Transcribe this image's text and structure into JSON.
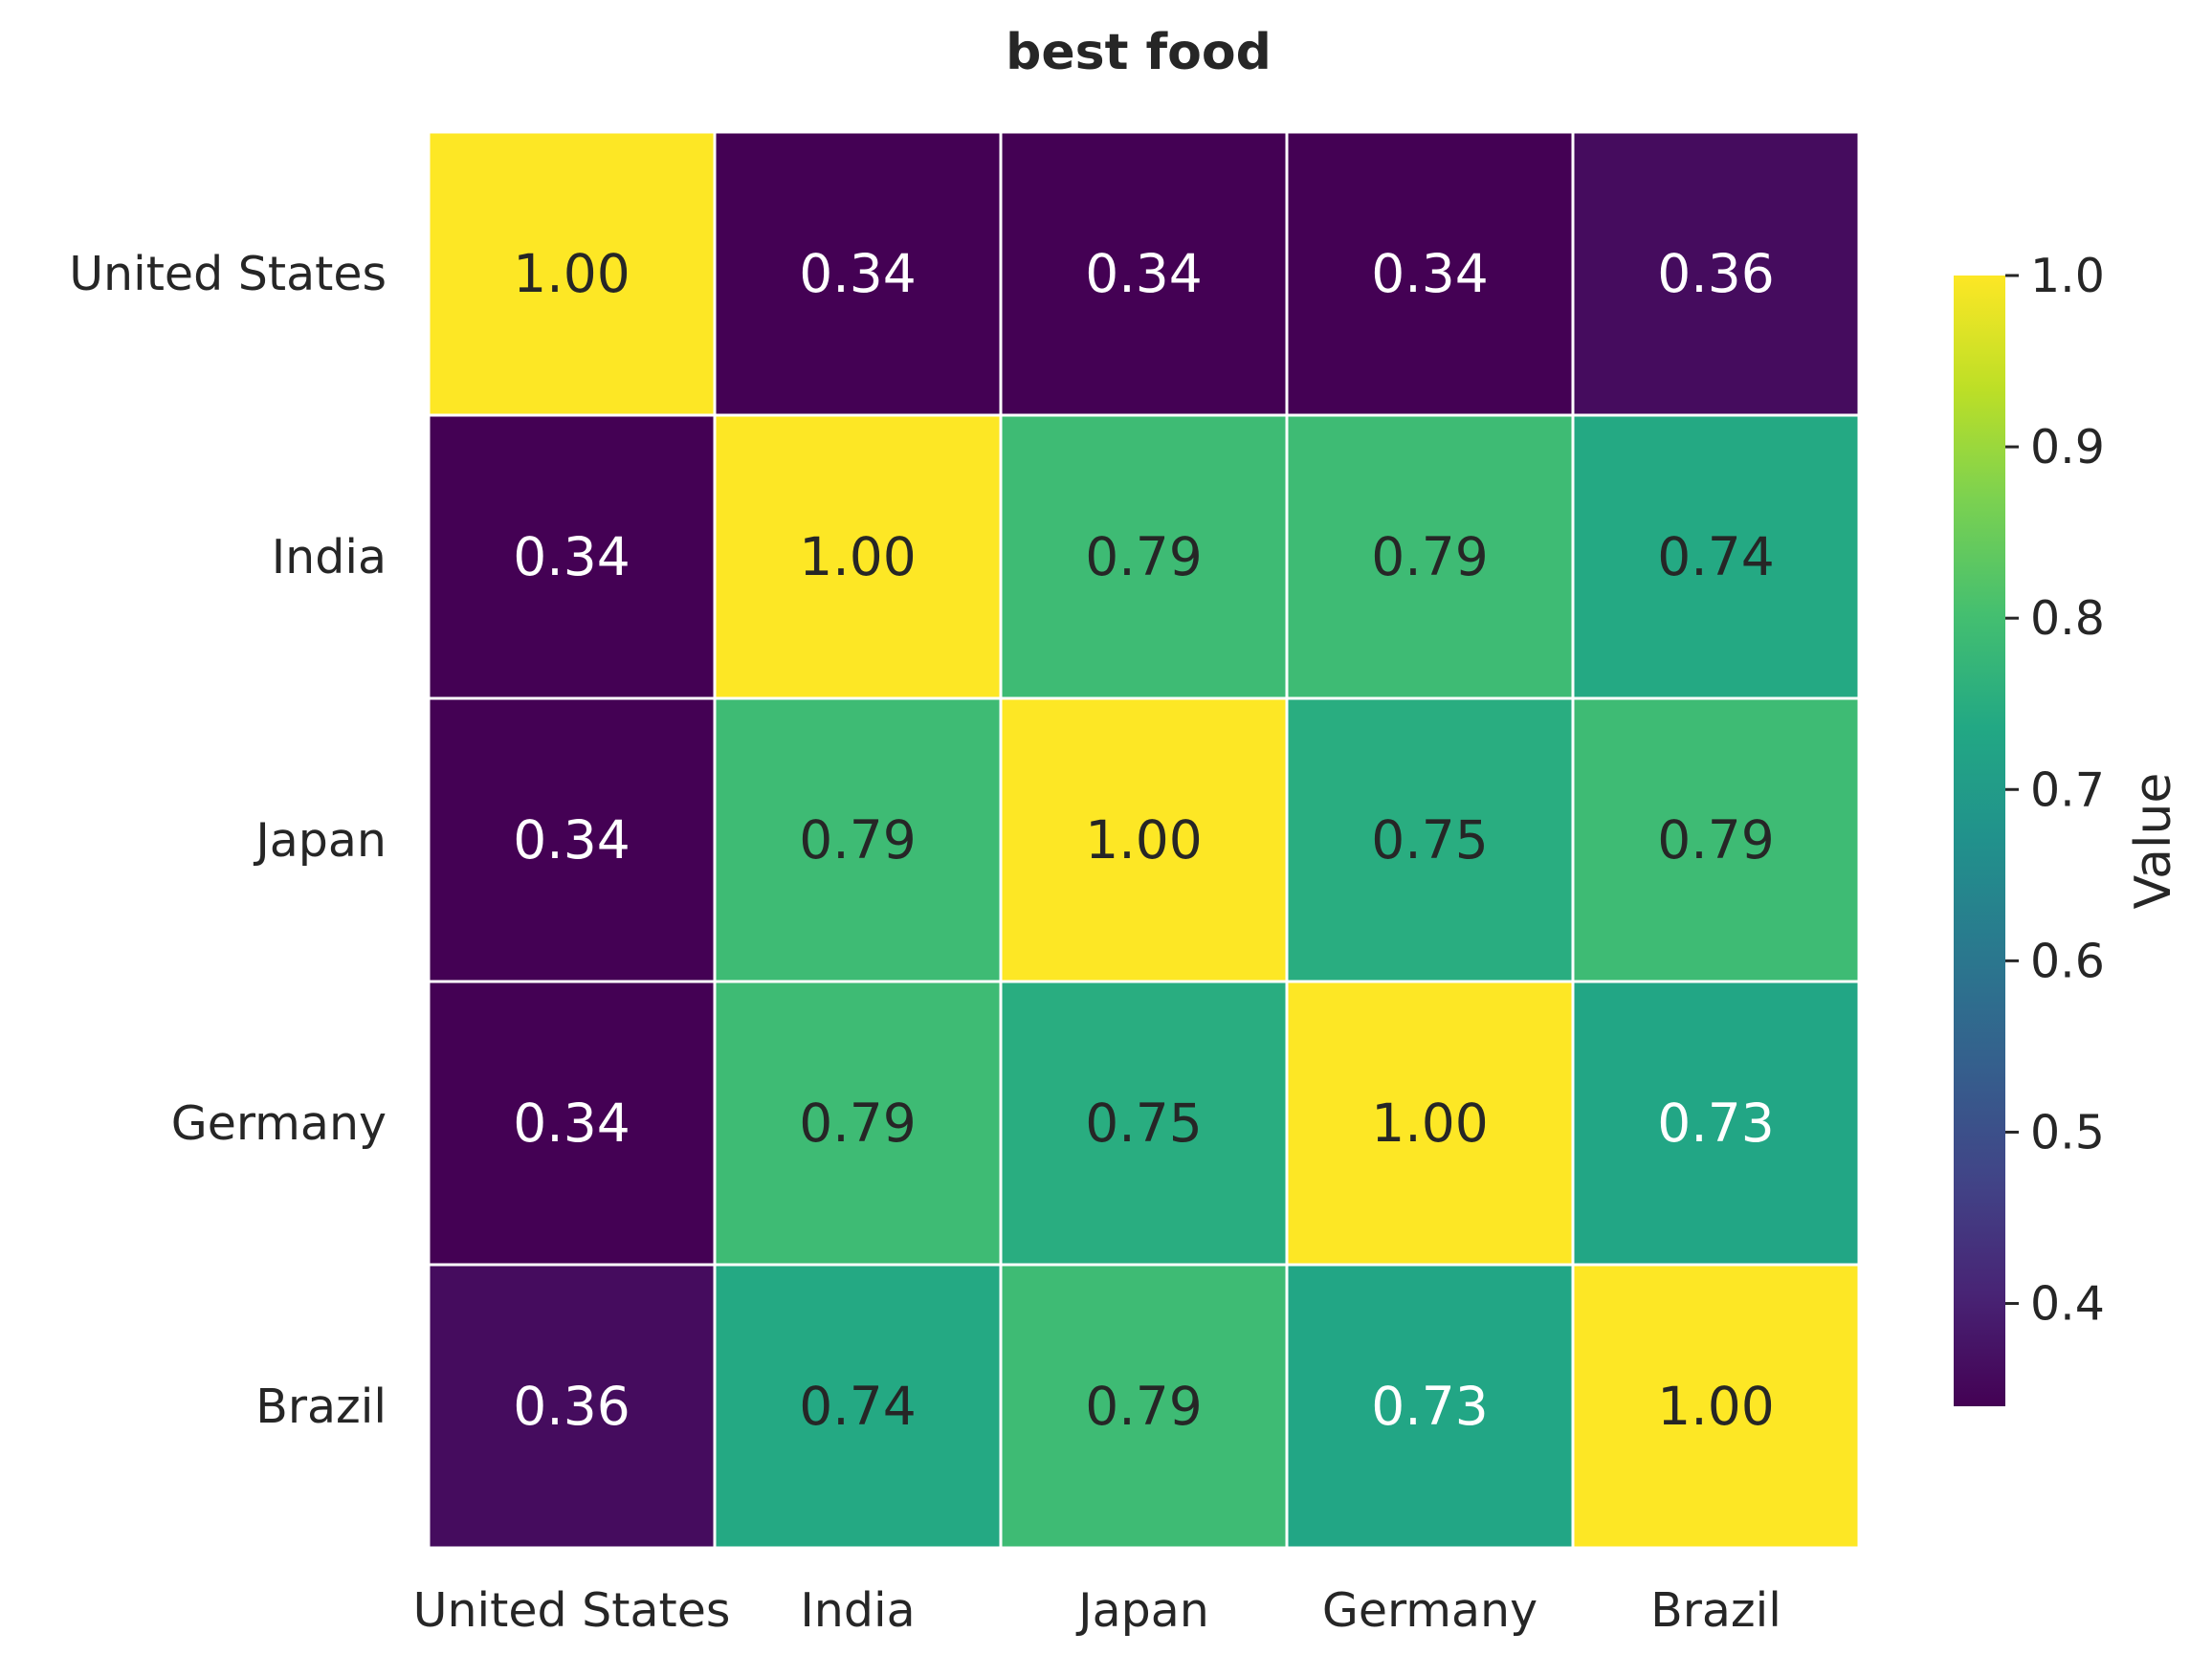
{
  "chart_data": {
    "type": "heatmap",
    "title": "best food",
    "rows": [
      "United States",
      "India",
      "Japan",
      "Germany",
      "Brazil"
    ],
    "columns": [
      "United States",
      "India",
      "Japan",
      "Germany",
      "Brazil"
    ],
    "values": [
      [
        1.0,
        0.34,
        0.34,
        0.34,
        0.36
      ],
      [
        0.34,
        1.0,
        0.79,
        0.79,
        0.74
      ],
      [
        0.34,
        0.79,
        1.0,
        0.75,
        0.79
      ],
      [
        0.34,
        0.79,
        0.75,
        1.0,
        0.73
      ],
      [
        0.36,
        0.74,
        0.79,
        0.73,
        1.0
      ]
    ],
    "value_format": "0.00",
    "colormap": "viridis",
    "colorbar": {
      "label": "Value",
      "range": [
        0.34,
        1.0
      ],
      "ticks": [
        "0.4",
        "0.5",
        "0.6",
        "0.7",
        "0.8",
        "0.9",
        "1.0"
      ]
    },
    "grid_line_color": "#ffffff"
  }
}
